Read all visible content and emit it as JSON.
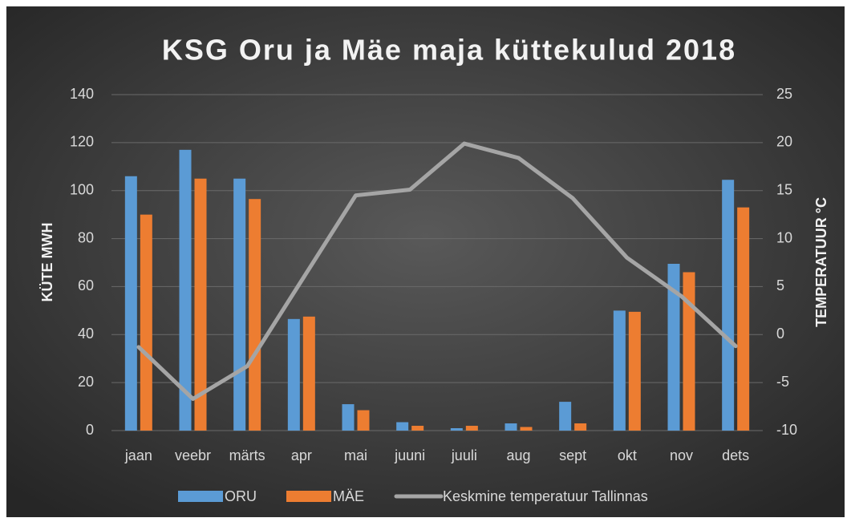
{
  "chart_data": {
    "type": "bar_line",
    "title": "KSG Oru ja Mäe maja küttekulud 2018",
    "y_label": "KÜTE MWH",
    "y2_label": "TEMPERATUUR °C",
    "categories": [
      "jaan",
      "veebr",
      "märts",
      "apr",
      "mai",
      "juuni",
      "juuli",
      "aug",
      "sept",
      "okt",
      "nov",
      "dets"
    ],
    "series": [
      {
        "name": "ORU",
        "type": "bar",
        "color": "#5b9bd5",
        "values": [
          106,
          117,
          105,
          46.5,
          11,
          3.5,
          1,
          3,
          12,
          50,
          69.5,
          104.5
        ]
      },
      {
        "name": "MÄE",
        "type": "bar",
        "color": "#ed7d31",
        "values": [
          90,
          105,
          96.5,
          47.5,
          8.5,
          2,
          2,
          1.5,
          3,
          49.5,
          66,
          93
        ]
      },
      {
        "name": "Keskmine temperatuur Tallinnas",
        "type": "line",
        "axis": "y2",
        "color": "#a5a5a5",
        "values": [
          -1.3,
          -6.7,
          -3.3,
          5.6,
          14.5,
          15.1,
          19.9,
          18.4,
          14.2,
          8.0,
          4.0,
          -1.2
        ]
      }
    ],
    "ylim": [
      0,
      140
    ],
    "yticks": [
      0,
      20,
      40,
      60,
      80,
      100,
      120,
      140
    ],
    "y2lim": [
      -10,
      25
    ],
    "y2ticks": [
      -10,
      -5,
      0,
      5,
      10,
      15,
      20,
      25
    ],
    "grid": true,
    "legend": "bottom"
  }
}
